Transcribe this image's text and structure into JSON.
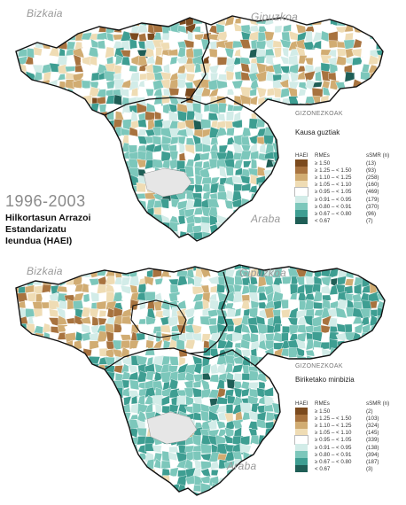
{
  "period": "1996-2003",
  "indicator_title": [
    "Hilkortasun Arrazoi",
    "Estandarizatu",
    "Ieundua (HAEI)"
  ],
  "regions": [
    "Bizkaia",
    "Gipuzkoa",
    "Araba"
  ],
  "legend_header": {
    "col1": "HAEI",
    "col2": "RMEs",
    "col3": "sSMR (n)"
  },
  "class_colors": [
    "#7b4a1e",
    "#a8733f",
    "#d1ac72",
    "#efdcb4",
    "#ffffff",
    "#d2ece8",
    "#7cc7bb",
    "#3e9e92",
    "#1f5e56"
  ],
  "maps": [
    {
      "sex": "GIZONEZKOAK",
      "cause": "Kausa guztiak",
      "classes": [
        {
          "range": "≥ 1.50",
          "n": "(13)"
        },
        {
          "range": "≥ 1.25 – < 1.50",
          "n": "(93)"
        },
        {
          "range": "≥ 1.10 – < 1.25",
          "n": "(258)"
        },
        {
          "range": "≥ 1.05 – < 1.10",
          "n": "(160)"
        },
        {
          "range": "≥ 0.95 – < 1.05",
          "n": "(469)"
        },
        {
          "range": "≥ 0.91 – < 0.95",
          "n": "(179)"
        },
        {
          "range": "≥ 0.80 – < 0.91",
          "n": "(370)"
        },
        {
          "range": "≥ 0.67 – < 0.80",
          "n": "(96)"
        },
        {
          "range": "< 0.67",
          "n": "(7)"
        }
      ]
    },
    {
      "sex": "GIZONEZKOAK",
      "cause": "Biriketako minbizia",
      "classes": [
        {
          "range": "≥ 1.50",
          "n": "(2)"
        },
        {
          "range": "≥ 1.25 – < 1.50",
          "n": "(103)"
        },
        {
          "range": "≥ 1.10 – < 1.25",
          "n": "(324)"
        },
        {
          "range": "≥ 1.05 – < 1.10",
          "n": "(145)"
        },
        {
          "range": "≥ 0.95 – < 1.05",
          "n": "(339)"
        },
        {
          "range": "≥ 0.91 – < 0.95",
          "n": "(138)"
        },
        {
          "range": "≥ 0.80 – < 0.91",
          "n": "(394)"
        },
        {
          "range": "≥ 0.67 – < 0.80",
          "n": "(187)"
        },
        {
          "range": "< 0.67",
          "n": "(3)"
        }
      ]
    }
  ]
}
